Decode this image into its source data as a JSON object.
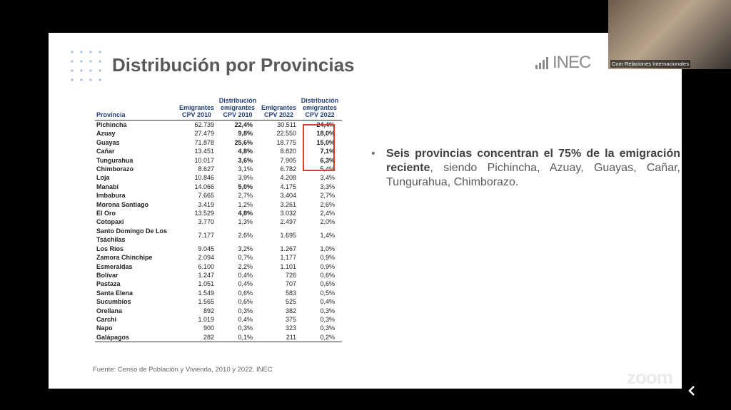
{
  "slide": {
    "title": "Distribución por Provincias",
    "logo": "INEC",
    "table": {
      "headers": [
        "Provincia",
        "Emigrantes CPV 2010",
        "Distribución emigrantes CPV 2010",
        "Emigrantes CPV 2022",
        "Distribución emigrantes CPV 2022"
      ],
      "rows": [
        [
          "Pichincha",
          "62.739",
          "22,4%",
          "30.511",
          "24,4%"
        ],
        [
          "Azuay",
          "27.479",
          "9,8%",
          "22.550",
          "18,0%"
        ],
        [
          "Guayas",
          "71.878",
          "25,6%",
          "18.775",
          "15,0%"
        ],
        [
          "Cañar",
          "13.451",
          "4,8%",
          "8.820",
          "7,1%"
        ],
        [
          "Tungurahua",
          "10.017",
          "3,6%",
          "7.905",
          "6,3%"
        ],
        [
          "Chimborazo",
          "8.627",
          "3,1%",
          "6.782",
          "5,4%"
        ],
        [
          "Loja",
          "10.846",
          "3,9%",
          "4.208",
          "3,4%"
        ],
        [
          "Manabí",
          "14.066",
          "5,0%",
          "4.175",
          "3,3%"
        ],
        [
          "Imbabura",
          "7.665",
          "2,7%",
          "3.404",
          "2,7%"
        ],
        [
          "Morona Santiago",
          "3.419",
          "1,2%",
          "3.261",
          "2,6%"
        ],
        [
          "El Oro",
          "13.529",
          "4,8%",
          "3.032",
          "2,4%"
        ],
        [
          "Cotopaxi",
          "3.770",
          "1,3%",
          "2.497",
          "2,0%"
        ],
        [
          "Santo Domingo De Los Tsáchilas",
          "7.177",
          "2,6%",
          "1.695",
          "1,4%"
        ],
        [
          "Los Ríos",
          "9.045",
          "3,2%",
          "1.267",
          "1,0%"
        ],
        [
          "Zamora Chinchipe",
          "2.094",
          "0,7%",
          "1.177",
          "0,9%"
        ],
        [
          "Esmeraldas",
          "6.100",
          "2,2%",
          "1.101",
          "0,9%"
        ],
        [
          "Bolívar",
          "1.247",
          "0,4%",
          "726",
          "0,6%"
        ],
        [
          "Pastaza",
          "1.051",
          "0,4%",
          "707",
          "0,6%"
        ],
        [
          "Santa Elena",
          "1.549",
          "0,6%",
          "583",
          "0,5%"
        ],
        [
          "Sucumbíos",
          "1.565",
          "0,6%",
          "525",
          "0,4%"
        ],
        [
          "Orellana",
          "892",
          "0,3%",
          "382",
          "0,3%"
        ],
        [
          "Carchi",
          "1.019",
          "0,4%",
          "375",
          "0,3%"
        ],
        [
          "Napo",
          "900",
          "0,3%",
          "323",
          "0,3%"
        ],
        [
          "Galápagos",
          "282",
          "0,1%",
          "211",
          "0,2%"
        ]
      ]
    },
    "bullet": {
      "bold": "Seis provincias concentran el 75% de la emigración reciente",
      "rest": ", siendo Pichincha, Azuay, Guayas, Cañar, Tungurahua, Chimborazo."
    },
    "source": "Fuente: Censo de Población y Vivienda, 2010 y 2022. INEC"
  },
  "video": {
    "participant": "Com Relaciones Internacionales",
    "watermark": "zoom"
  }
}
